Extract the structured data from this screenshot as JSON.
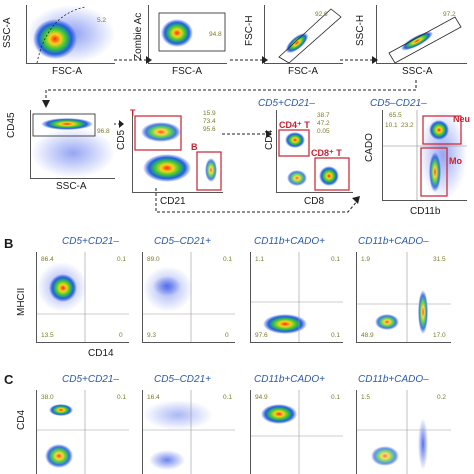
{
  "panelA": {
    "row1": [
      {
        "ylabel": "SSC-A",
        "xlabel": "FSC-A",
        "gate_value": "5.2"
      },
      {
        "ylabel": "Zombie Ac",
        "xlabel": "FSC-A",
        "gate_value": "94.8"
      },
      {
        "ylabel": "FSC-H",
        "xlabel": "FSC-A",
        "gate_value": "92.6"
      },
      {
        "ylabel": "SSC-H",
        "xlabel": "SSC-A",
        "gate_value": "97.2"
      }
    ],
    "row2": [
      {
        "ylabel": "CD45",
        "xlabel": "SSC-A",
        "gate_value": "96.8"
      },
      {
        "ylabel": "CD5",
        "xlabel": "CD21",
        "values": [
          "15.9",
          "73.4",
          "95.6"
        ],
        "gate_T": "T",
        "gate_B": "B"
      },
      {
        "title": "CD5+CD21–",
        "ylabel": "CD4",
        "xlabel": "CD8",
        "values": [
          "38.7",
          "47.2",
          "0.05"
        ],
        "gate_cd4": "CD4⁺ T",
        "gate_cd8": "CD8⁺ T"
      },
      {
        "title": "CD5–CD21–",
        "ylabel": "CADO",
        "xlabel": "CD11b",
        "values": [
          "65.5",
          "10.1",
          "23.2"
        ],
        "gate_neu": "Neu",
        "gate_mo": "Mo"
      }
    ]
  },
  "panelB": {
    "letter": "B",
    "ylabel": "MHCII",
    "xlabel": "CD14",
    "plots": [
      {
        "title": "CD5+CD21–",
        "q": [
          "86.4",
          "0.1",
          "13.5",
          "0"
        ]
      },
      {
        "title": "CD5–CD21+",
        "q": [
          "89.0",
          "0.1",
          "9.3",
          "0"
        ]
      },
      {
        "title": "CD11b+CADO+",
        "q": [
          "1.1",
          "0.1",
          "97.6",
          "0.1"
        ]
      },
      {
        "title": "CD11b+CADO–",
        "q": [
          "1.9",
          "31.5",
          "48.9",
          "17.0"
        ]
      }
    ]
  },
  "panelC": {
    "letter": "C",
    "ylabel": "CD4",
    "plots": [
      {
        "title": "CD5+CD21–",
        "q": [
          "38.0",
          "0.1"
        ]
      },
      {
        "title": "CD5–CD21+",
        "q": [
          "16.4",
          "0.1"
        ]
      },
      {
        "title": "CD11b+CADO+",
        "q": [
          "94.9",
          "0.1"
        ]
      },
      {
        "title": "CD11b+CADO–",
        "q": [
          "1.5",
          "0.2"
        ]
      }
    ]
  },
  "colors": {
    "gate": "#cc1f2f",
    "title": "#2a5aa8",
    "value": "#7a7a2a"
  }
}
